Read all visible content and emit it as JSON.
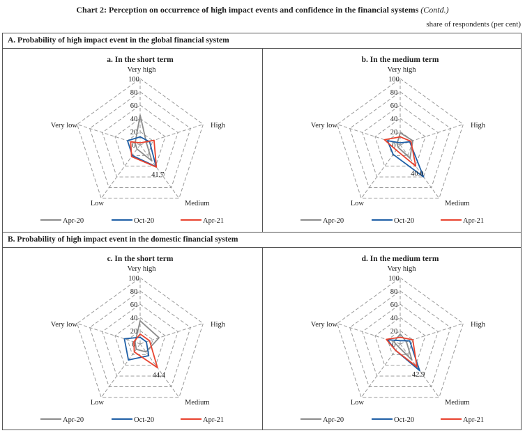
{
  "title": "Chart 2: Perception on occurrence of high impact events and confidence in the financial systems",
  "title_suffix": "(Contd.)",
  "unit_label": "share of respondents (per cent)",
  "colors": {
    "Apr-20": "#8c8c8c",
    "Oct-20": "#1f5fa6",
    "Apr-21": "#e8422e",
    "grid": "#9a9a9a"
  },
  "sections": [
    {
      "label": "A. Probability of high impact event in the global financial system"
    },
    {
      "label": "B.  Probability of high impact event in the domestic financial system"
    }
  ],
  "chart_data": [
    {
      "type": "radar",
      "title": "a. In the short term",
      "axes": [
        "Very high",
        "High",
        "Medium",
        "Low",
        "Very low"
      ],
      "rlim": [
        0,
        100
      ],
      "ticks": [
        "100",
        "80",
        "60",
        "40",
        "20",
        "0"
      ],
      "legend": [
        "Apr-20",
        "Oct-20",
        "Apr-21"
      ],
      "series": [
        {
          "name": "Apr-20",
          "values": [
            45,
            10,
            30,
            8,
            8
          ]
        },
        {
          "name": "Oct-20",
          "values": [
            12,
            15,
            41,
            20,
            20
          ]
        },
        {
          "name": "Apr-21",
          "values": [
            3,
            22,
            41.7,
            22,
            15
          ]
        }
      ],
      "annotation": "41.7"
    },
    {
      "type": "radar",
      "title": "b. In the medium term",
      "axes": [
        "Very high",
        "High",
        "Medium",
        "Low",
        "Very low"
      ],
      "rlim": [
        0,
        100
      ],
      "ticks": [
        "100",
        "80",
        "60",
        "40",
        "20",
        "0"
      ],
      "legend": [
        "Apr-20",
        "Oct-20",
        "Apr-21"
      ],
      "series": [
        {
          "name": "Apr-20",
          "values": [
            18,
            20,
            25,
            5,
            5
          ]
        },
        {
          "name": "Oct-20",
          "values": [
            3,
            15,
            60,
            18,
            20
          ]
        },
        {
          "name": "Apr-21",
          "values": [
            12,
            17,
            40.0,
            10,
            25
          ]
        }
      ],
      "annotation": "40.0"
    },
    {
      "type": "radar",
      "title": "c. In the short term",
      "axes": [
        "Very high",
        "High",
        "Medium",
        "Low",
        "Very low"
      ],
      "rlim": [
        0,
        100
      ],
      "ticks": [
        "100",
        "80",
        "60",
        "40",
        "20",
        "0"
      ],
      "legend": [
        "Apr-20",
        "Oct-20",
        "Apr-21"
      ],
      "series": [
        {
          "name": "Apr-20",
          "values": [
            35,
            30,
            15,
            10,
            8
          ]
        },
        {
          "name": "Oct-20",
          "values": [
            10,
            10,
            22,
            30,
            25
          ]
        },
        {
          "name": "Apr-21",
          "values": [
            15,
            15,
            44.4,
            15,
            10
          ]
        }
      ],
      "annotation": "44.4"
    },
    {
      "type": "radar",
      "title": "d. In the medium term",
      "axes": [
        "Very high",
        "High",
        "Medium",
        "Low",
        "Very low"
      ],
      "rlim": [
        0,
        100
      ],
      "ticks": [
        "100",
        "80",
        "60",
        "40",
        "20",
        "0"
      ],
      "legend": [
        "Apr-20",
        "Oct-20",
        "Apr-21"
      ],
      "series": [
        {
          "name": "Apr-20",
          "values": [
            15,
            10,
            30,
            5,
            10
          ]
        },
        {
          "name": "Oct-20",
          "values": [
            5,
            15,
            50,
            12,
            20
          ]
        },
        {
          "name": "Apr-21",
          "values": [
            10,
            20,
            42.9,
            12,
            22
          ]
        }
      ],
      "annotation": "42.9"
    }
  ]
}
